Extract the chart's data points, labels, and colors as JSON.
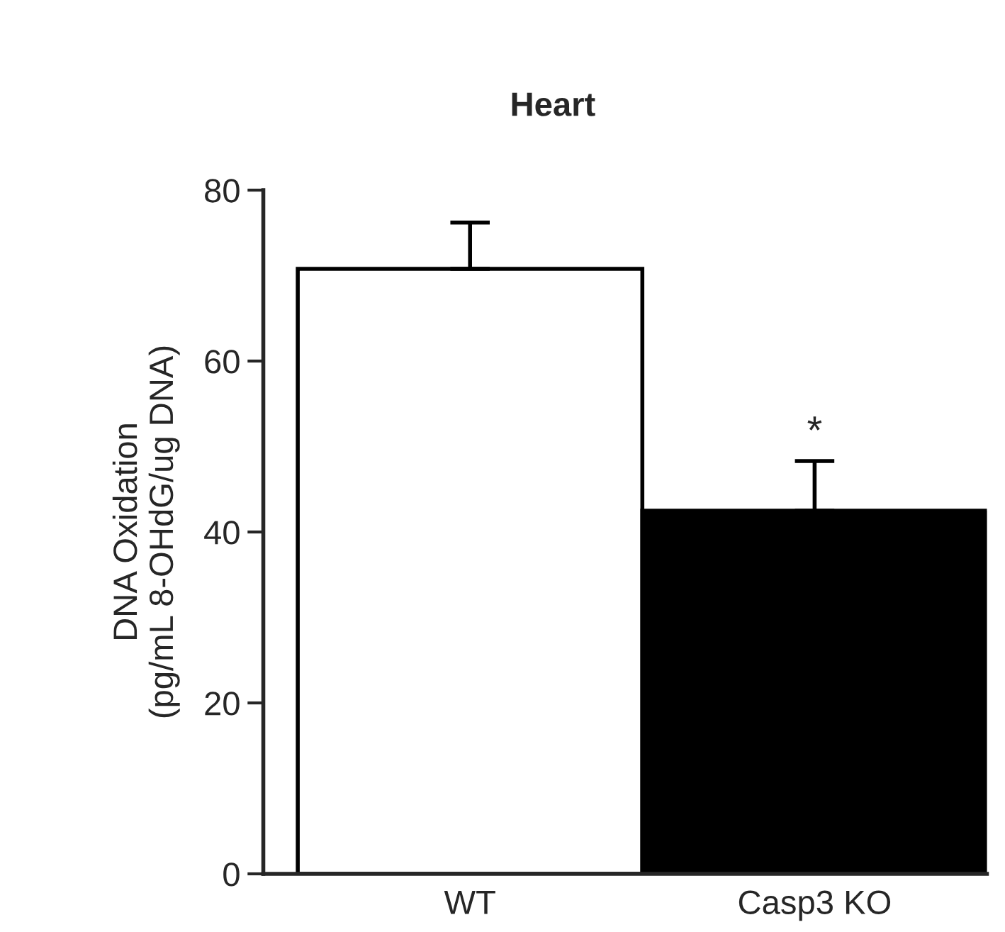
{
  "chart_data": {
    "type": "bar",
    "title": "Heart",
    "ylabel": "DNA Oxidation\n(pg/mL 8-OHdG/ug DNA)",
    "categories": [
      "WT",
      "Casp3 KO"
    ],
    "values": [
      70.8,
      42.5
    ],
    "colors": [
      "#ffffff",
      "#000000"
    ],
    "errors": [
      [
        70.8,
        76.2
      ],
      [
        42.5,
        48.3
      ]
    ],
    "ylim": [
      0,
      80
    ],
    "yticks": [
      0,
      20,
      40,
      60,
      80
    ],
    "grid": false,
    "annotations": [
      "*"
    ]
  }
}
